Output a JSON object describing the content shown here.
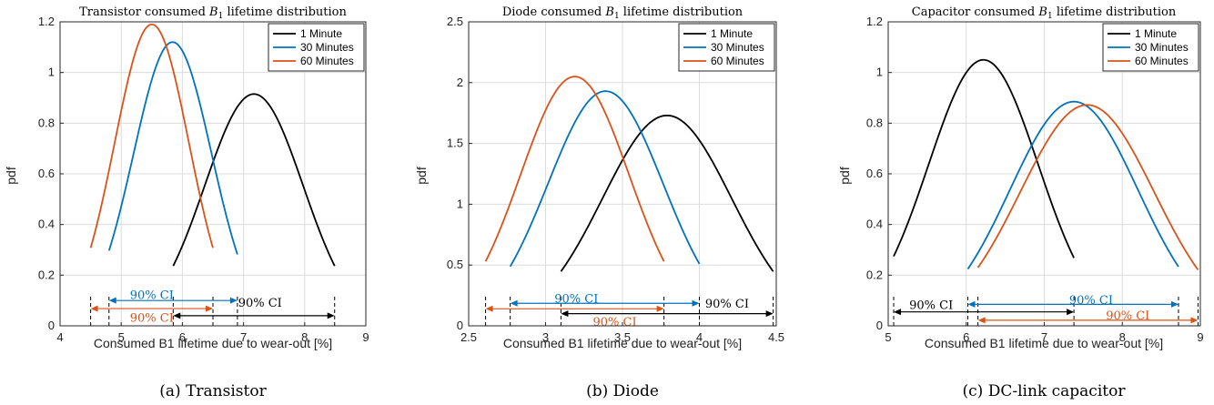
{
  "chart_data": [
    {
      "type": "line",
      "title_main": "Transistor consumed ",
      "title_sym": "B",
      "title_sub": "1",
      "title_rest": " lifetime distribution",
      "xlabel": "Consumed B1 lifetime due to wear-out [%]",
      "ylabel": "pdf",
      "xlim": [
        4,
        9
      ],
      "ylim": [
        0,
        1.2
      ],
      "xticks": [
        "4",
        "5",
        "6",
        "7",
        "8",
        "9"
      ],
      "yticks": [
        "0",
        "0.2",
        "0.4",
        "0.6",
        "0.8",
        "1",
        "1.2"
      ],
      "grid": true,
      "legend_position": "top-right",
      "caption": "(a) Transistor",
      "series": [
        {
          "name": "1 Minute",
          "color": "#000000",
          "mean": 7.17,
          "peak": 0.915,
          "lo": 5.85,
          "hi": 8.49
        },
        {
          "name": "30 Minutes",
          "color": "#0072BD",
          "mean": 5.84,
          "peak": 1.12,
          "lo": 4.8,
          "hi": 6.9
        },
        {
          "name": "60 Minutes",
          "color": "#D95319",
          "mean": 5.5,
          "peak": 1.19,
          "lo": 4.5,
          "hi": 6.5
        }
      ],
      "ci": [
        {
          "label": "90% CI",
          "color": "#000000",
          "lo": 5.85,
          "hi": 8.49,
          "arrow_y": 0.04,
          "label_x": 7.27,
          "label_y": 0.09
        },
        {
          "label": "90% CI",
          "color": "#0072BD",
          "lo": 4.8,
          "hi": 6.9,
          "arrow_y": 0.1,
          "label_x": 5.5,
          "label_y": 0.12
        },
        {
          "label": "90% CI",
          "color": "#D95319",
          "lo": 4.5,
          "hi": 6.5,
          "arrow_y": 0.068,
          "label_x": 5.5,
          "label_y": 0.03
        }
      ]
    },
    {
      "type": "line",
      "title_main": "Diode consumed ",
      "title_sym": "B",
      "title_sub": "1",
      "title_rest": " lifetime distribution",
      "xlabel": "Consumed B1 lifetime due to wear-out [%]",
      "ylabel": "pdf",
      "xlim": [
        2.5,
        4.5
      ],
      "ylim": [
        0,
        2.5
      ],
      "xticks": [
        "2.5",
        "3",
        "3.5",
        "4",
        "4.5"
      ],
      "yticks": [
        "0",
        "0.5",
        "1",
        "1.5",
        "2",
        "2.5"
      ],
      "grid": true,
      "legend_position": "top-right",
      "caption": "(b) Diode",
      "series": [
        {
          "name": "1 Minute",
          "color": "#000000",
          "mean": 3.79,
          "peak": 1.73,
          "lo": 3.1,
          "hi": 4.48
        },
        {
          "name": "30 Minutes",
          "color": "#0072BD",
          "mean": 3.39,
          "peak": 1.93,
          "lo": 2.77,
          "hi": 4.0
        },
        {
          "name": "60 Minutes",
          "color": "#D95319",
          "mean": 3.19,
          "peak": 2.05,
          "lo": 2.61,
          "hi": 3.77
        }
      ],
      "ci": [
        {
          "label": "90% CI",
          "color": "#000000",
          "lo": 3.1,
          "hi": 4.48,
          "arrow_y": 0.1,
          "label_x": 4.18,
          "label_y": 0.18
        },
        {
          "label": "90% CI",
          "color": "#0072BD",
          "lo": 2.77,
          "hi": 4.0,
          "arrow_y": 0.185,
          "label_x": 3.2,
          "label_y": 0.22
        },
        {
          "label": "90% CI",
          "color": "#D95319",
          "lo": 2.61,
          "hi": 3.77,
          "arrow_y": 0.14,
          "label_x": 3.45,
          "label_y": 0.03
        }
      ]
    },
    {
      "type": "line",
      "title_main": "Capacitor consumed ",
      "title_sym": "B",
      "title_sub": "1",
      "title_rest": " lifetime distribution",
      "xlabel": "Consumed B1 lifetime due to wear-out [%]",
      "ylabel": "pdf",
      "xlim": [
        5,
        9
      ],
      "ylim": [
        0,
        1.2
      ],
      "xticks": [
        "5",
        "6",
        "7",
        "8",
        "9"
      ],
      "yticks": [
        "0",
        "0.2",
        "0.4",
        "0.6",
        "0.8",
        "1",
        "1.2"
      ],
      "grid": true,
      "legend_position": "top-right",
      "caption": "(c) DC-link capacitor",
      "series": [
        {
          "name": "1 Minute",
          "color": "#000000",
          "mean": 6.22,
          "peak": 1.05,
          "lo": 5.07,
          "hi": 7.38
        },
        {
          "name": "30 Minutes",
          "color": "#0072BD",
          "mean": 7.38,
          "peak": 0.885,
          "lo": 6.02,
          "hi": 8.72
        },
        {
          "name": "60 Minutes",
          "color": "#D95319",
          "mean": 7.55,
          "peak": 0.872,
          "lo": 6.15,
          "hi": 8.97
        }
      ],
      "ci": [
        {
          "label": "90% CI",
          "color": "#000000",
          "lo": 5.07,
          "hi": 7.38,
          "arrow_y": 0.055,
          "label_x": 5.55,
          "label_y": 0.08
        },
        {
          "label": "90% CI",
          "color": "#0072BD",
          "lo": 6.02,
          "hi": 8.72,
          "arrow_y": 0.085,
          "label_x": 7.6,
          "label_y": 0.1
        },
        {
          "label": "90% CI",
          "color": "#D95319",
          "lo": 6.15,
          "hi": 8.97,
          "arrow_y": 0.022,
          "label_x": 8.07,
          "label_y": 0.04
        }
      ]
    }
  ]
}
